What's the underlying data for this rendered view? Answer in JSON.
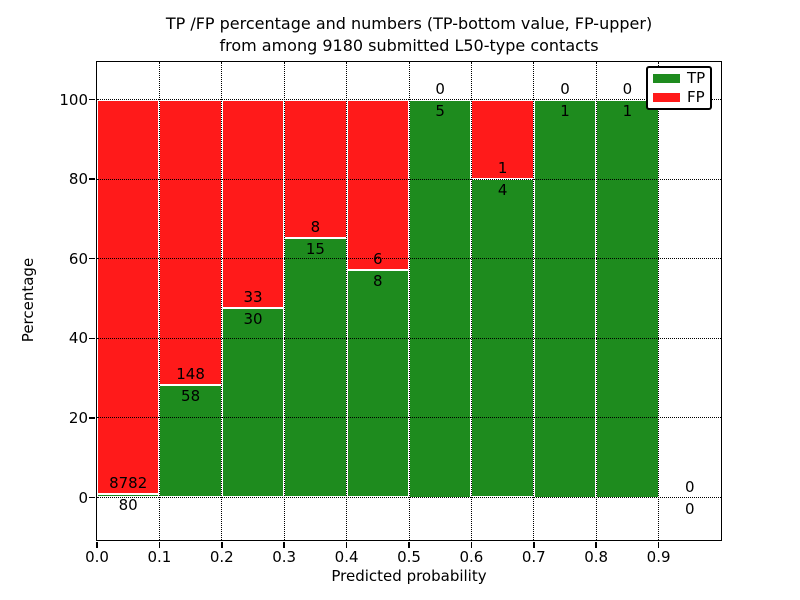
{
  "title": {
    "line1": "TP /FP percentage and numbers (TP-bottom value, FP-upper)",
    "line2": "from among 9180 submitted L50-type contacts"
  },
  "chart_data": {
    "type": "bar",
    "stacked": true,
    "title": "TP /FP percentage and numbers (TP-bottom value, FP-upper)\nfrom among 9180 submitted L50-type contacts",
    "xlabel": "Predicted probability",
    "ylabel": "Percentage",
    "xlim": [
      0.0,
      1.0
    ],
    "ylim": [
      -10.7,
      109.4
    ],
    "xticks": [
      "0.0",
      "0.1",
      "0.2",
      "0.3",
      "0.4",
      "0.5",
      "0.6",
      "0.7",
      "0.8",
      "0.9"
    ],
    "yticks": [
      "0",
      "20",
      "40",
      "60",
      "80",
      "100"
    ],
    "grid": "dotted",
    "total_submitted": 9180,
    "colors": {
      "tp": "#1e8b1e",
      "fp": "#ff1a1a",
      "bar_edge": "#ffffff",
      "grid": "#000000"
    },
    "legend": {
      "position": "upper right",
      "entries": [
        {
          "label": "TP",
          "color": "#1e8b1e"
        },
        {
          "label": "FP",
          "color": "#ff1a1a"
        }
      ]
    },
    "bins": [
      {
        "range": [
          0.0,
          0.1
        ],
        "tp": 80,
        "fp": 8782
      },
      {
        "range": [
          0.1,
          0.2
        ],
        "tp": 58,
        "fp": 148
      },
      {
        "range": [
          0.2,
          0.3
        ],
        "tp": 30,
        "fp": 33
      },
      {
        "range": [
          0.3,
          0.4
        ],
        "tp": 15,
        "fp": 8
      },
      {
        "range": [
          0.4,
          0.5
        ],
        "tp": 8,
        "fp": 6
      },
      {
        "range": [
          0.5,
          0.6
        ],
        "tp": 5,
        "fp": 0
      },
      {
        "range": [
          0.6,
          0.7
        ],
        "tp": 4,
        "fp": 1
      },
      {
        "range": [
          0.7,
          0.8
        ],
        "tp": 1,
        "fp": 0
      },
      {
        "range": [
          0.8,
          0.9
        ],
        "tp": 1,
        "fp": 0
      },
      {
        "range": [
          0.9,
          1.0
        ],
        "tp": 0,
        "fp": 0
      }
    ]
  }
}
